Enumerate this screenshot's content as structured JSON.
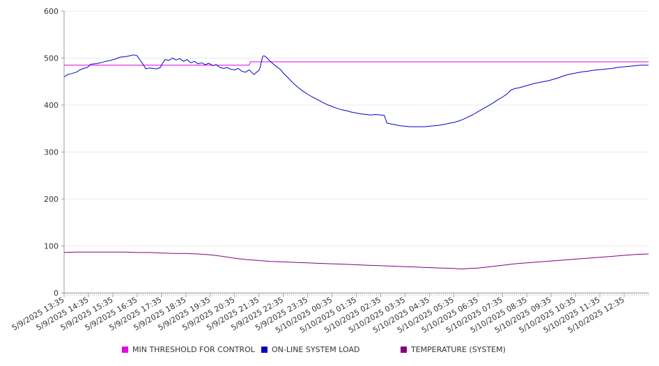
{
  "chart_data": {
    "type": "line",
    "y_axis": {
      "min": 0,
      "max": 600,
      "ticks": [
        "0",
        "100",
        "200",
        "300",
        "400",
        "500",
        "600"
      ]
    },
    "x_labels": [
      "5/9/2025 13:35",
      "5/9/2025 14:35",
      "5/9/2025 15:35",
      "5/9/2025 16:35",
      "5/9/2025 17:35",
      "5/9/2025 18:35",
      "5/9/2025 19:35",
      "5/9/2025 20:35",
      "5/9/2025 21:35",
      "5/9/2025 22:35",
      "5/9/2025 23:35",
      "5/10/2025 00:35",
      "5/10/2025 01:35",
      "5/10/2025 02:35",
      "5/10/2025 03:35",
      "5/10/2025 04:35",
      "5/10/2025 05:35",
      "5/10/2025 06:35",
      "5/10/2025 07:35",
      "5/10/2025 08:35",
      "5/10/2025 09:35",
      "5/10/2025 10:35",
      "5/10/2025 11:35",
      "5/10/2025 12:35"
    ],
    "x_domain": {
      "start_hour": 0,
      "end_hour": 24,
      "label_step_hours": 1
    },
    "grid": {
      "horizontal": true,
      "vertical": false
    },
    "legend_position": "bottom",
    "series": [
      {
        "name": "MIN THRESHOLD FOR CONTROL",
        "color": "#e600e6",
        "points": [
          [
            0,
            485
          ],
          [
            7.6,
            485
          ],
          [
            7.65,
            492
          ],
          [
            24,
            492
          ]
        ]
      },
      {
        "name": "ON-LINE SYSTEM LOAD",
        "color": "#0000cc",
        "points": [
          [
            0,
            460
          ],
          [
            0.15,
            465
          ],
          [
            0.3,
            467
          ],
          [
            0.5,
            470
          ],
          [
            0.65,
            475
          ],
          [
            0.8,
            478
          ],
          [
            0.95,
            480
          ],
          [
            1.1,
            487
          ],
          [
            1.3,
            488
          ],
          [
            1.5,
            490
          ],
          [
            1.7,
            493
          ],
          [
            1.9,
            495
          ],
          [
            2.1,
            498
          ],
          [
            2.3,
            502
          ],
          [
            2.5,
            503
          ],
          [
            2.7,
            505
          ],
          [
            2.85,
            507
          ],
          [
            3.0,
            505
          ],
          [
            3.1,
            497
          ],
          [
            3.2,
            490
          ],
          [
            3.3,
            482
          ],
          [
            3.35,
            477
          ],
          [
            3.5,
            479
          ],
          [
            3.65,
            478
          ],
          [
            3.8,
            477
          ],
          [
            3.95,
            480
          ],
          [
            4.05,
            490
          ],
          [
            4.15,
            497
          ],
          [
            4.3,
            495
          ],
          [
            4.45,
            500
          ],
          [
            4.6,
            496
          ],
          [
            4.75,
            499
          ],
          [
            4.9,
            493
          ],
          [
            5.05,
            497
          ],
          [
            5.2,
            490
          ],
          [
            5.35,
            493
          ],
          [
            5.5,
            488
          ],
          [
            5.65,
            490
          ],
          [
            5.8,
            486
          ],
          [
            5.95,
            489
          ],
          [
            6.1,
            484
          ],
          [
            6.25,
            486
          ],
          [
            6.4,
            480
          ],
          [
            6.55,
            478
          ],
          [
            6.7,
            480
          ],
          [
            6.85,
            476
          ],
          [
            7.0,
            475
          ],
          [
            7.15,
            478
          ],
          [
            7.3,
            472
          ],
          [
            7.45,
            470
          ],
          [
            7.6,
            475
          ],
          [
            7.7,
            470
          ],
          [
            7.8,
            465
          ],
          [
            7.9,
            470
          ],
          [
            8.0,
            474
          ],
          [
            8.05,
            480
          ],
          [
            8.1,
            492
          ],
          [
            8.15,
            503
          ],
          [
            8.2,
            505
          ],
          [
            8.3,
            502
          ],
          [
            8.45,
            494
          ],
          [
            8.6,
            487
          ],
          [
            8.75,
            481
          ],
          [
            8.9,
            475
          ],
          [
            9.0,
            468
          ],
          [
            9.2,
            458
          ],
          [
            9.4,
            447
          ],
          [
            9.6,
            438
          ],
          [
            9.8,
            430
          ],
          [
            10.0,
            423
          ],
          [
            10.2,
            417
          ],
          [
            10.4,
            412
          ],
          [
            10.6,
            406
          ],
          [
            10.8,
            401
          ],
          [
            11.0,
            397
          ],
          [
            11.2,
            393
          ],
          [
            11.4,
            390
          ],
          [
            11.6,
            388
          ],
          [
            11.8,
            385
          ],
          [
            12.0,
            383
          ],
          [
            12.2,
            381
          ],
          [
            12.4,
            380
          ],
          [
            12.6,
            379
          ],
          [
            12.8,
            380
          ],
          [
            13.0,
            379
          ],
          [
            13.15,
            378
          ],
          [
            13.25,
            362
          ],
          [
            13.4,
            360
          ],
          [
            13.6,
            358
          ],
          [
            13.8,
            356
          ],
          [
            14.0,
            355
          ],
          [
            14.2,
            354
          ],
          [
            14.4,
            354
          ],
          [
            14.6,
            354
          ],
          [
            14.8,
            354
          ],
          [
            15.0,
            355
          ],
          [
            15.2,
            356
          ],
          [
            15.4,
            357
          ],
          [
            15.6,
            359
          ],
          [
            15.8,
            361
          ],
          [
            16.0,
            363
          ],
          [
            16.2,
            366
          ],
          [
            16.4,
            370
          ],
          [
            16.6,
            375
          ],
          [
            16.8,
            380
          ],
          [
            17.0,
            386
          ],
          [
            17.2,
            392
          ],
          [
            17.4,
            398
          ],
          [
            17.6,
            404
          ],
          [
            17.8,
            411
          ],
          [
            18.0,
            417
          ],
          [
            18.2,
            424
          ],
          [
            18.35,
            432
          ],
          [
            18.5,
            435
          ],
          [
            18.7,
            437
          ],
          [
            18.9,
            440
          ],
          [
            19.1,
            443
          ],
          [
            19.3,
            446
          ],
          [
            19.5,
            448
          ],
          [
            19.7,
            450
          ],
          [
            19.9,
            452
          ],
          [
            20.1,
            455
          ],
          [
            20.3,
            458
          ],
          [
            20.5,
            462
          ],
          [
            20.7,
            465
          ],
          [
            20.9,
            467
          ],
          [
            21.1,
            469
          ],
          [
            21.3,
            471
          ],
          [
            21.5,
            472
          ],
          [
            21.7,
            474
          ],
          [
            21.9,
            475
          ],
          [
            22.1,
            476
          ],
          [
            22.3,
            477
          ],
          [
            22.5,
            478
          ],
          [
            22.7,
            480
          ],
          [
            22.9,
            481
          ],
          [
            23.1,
            482
          ],
          [
            23.3,
            483
          ],
          [
            23.5,
            484
          ],
          [
            23.7,
            485
          ],
          [
            24,
            485
          ]
        ]
      },
      {
        "name": "TEMPERATURE (SYSTEM)",
        "color": "#800080",
        "points": [
          [
            0,
            86
          ],
          [
            0.5,
            87
          ],
          [
            1,
            87
          ],
          [
            1.5,
            87
          ],
          [
            2,
            87
          ],
          [
            2.5,
            87
          ],
          [
            3,
            86
          ],
          [
            3.5,
            86
          ],
          [
            4,
            85
          ],
          [
            4.5,
            84
          ],
          [
            5,
            84
          ],
          [
            5.5,
            83
          ],
          [
            6,
            81
          ],
          [
            6.5,
            78
          ],
          [
            7,
            74
          ],
          [
            7.5,
            71
          ],
          [
            8,
            69
          ],
          [
            8.5,
            67
          ],
          [
            9,
            66
          ],
          [
            9.5,
            65
          ],
          [
            10,
            64
          ],
          [
            10.5,
            63
          ],
          [
            11,
            62
          ],
          [
            11.5,
            61
          ],
          [
            12,
            60
          ],
          [
            12.5,
            59
          ],
          [
            13,
            58
          ],
          [
            13.5,
            57
          ],
          [
            14,
            56
          ],
          [
            14.5,
            55
          ],
          [
            15,
            54
          ],
          [
            15.5,
            53
          ],
          [
            16,
            52
          ],
          [
            16.3,
            51
          ],
          [
            16.6,
            52
          ],
          [
            17,
            53
          ],
          [
            17.5,
            56
          ],
          [
            18,
            59
          ],
          [
            18.5,
            62
          ],
          [
            19,
            64
          ],
          [
            19.5,
            66
          ],
          [
            20,
            68
          ],
          [
            20.5,
            70
          ],
          [
            21,
            72
          ],
          [
            21.5,
            74
          ],
          [
            22,
            76
          ],
          [
            22.5,
            78
          ],
          [
            23,
            80
          ],
          [
            23.5,
            82
          ],
          [
            24,
            83
          ]
        ]
      }
    ]
  },
  "legend": {
    "items": [
      {
        "label": "MIN THRESHOLD FOR CONTROL",
        "color": "#e600e6"
      },
      {
        "label": "ON-LINE SYSTEM LOAD",
        "color": "#0000cc"
      },
      {
        "label": "TEMPERATURE (SYSTEM)",
        "color": "#800080"
      }
    ]
  }
}
